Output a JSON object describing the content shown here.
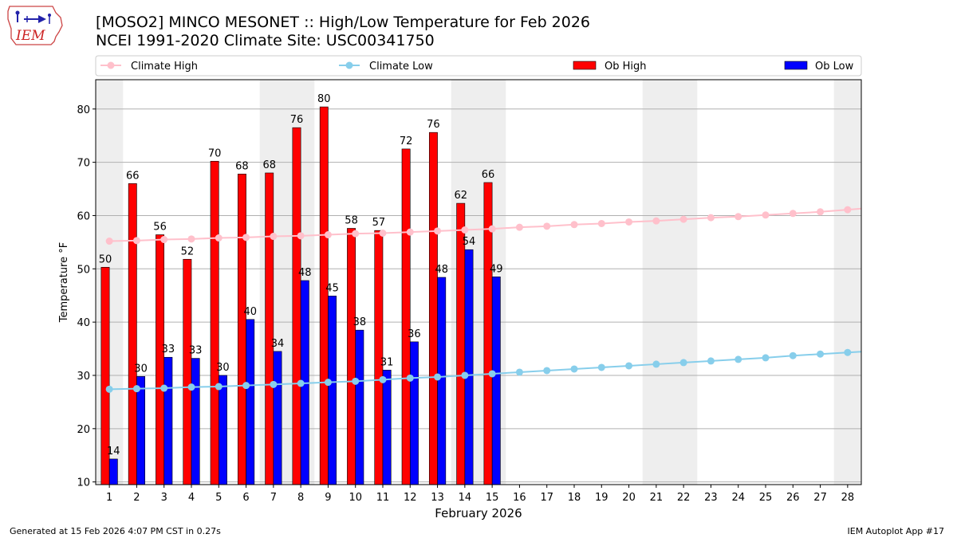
{
  "header": {
    "title_line1": "[MOSO2] MINCO MESONET :: High/Low Temperature for Feb 2026",
    "title_line2": "NCEI 1991-2020 Climate Site: USC00341750",
    "logo_text": "IEM"
  },
  "footer": {
    "left": "Generated at 15 Feb 2026 4:07 PM CST in 0.27s",
    "right": "IEM Autoplot App #17"
  },
  "colors": {
    "ob_high": "#ff0000",
    "ob_low": "#0000ff",
    "climate_high": "#ffc0cb",
    "climate_low": "#87ceeb",
    "weekend_shade": "#eeeeee"
  },
  "chart_data": {
    "type": "bar",
    "xlabel": "February 2026",
    "ylabel": "Temperature °F",
    "ylim": [
      9.5,
      85.5
    ],
    "yticks": [
      10,
      20,
      30,
      40,
      50,
      60,
      70,
      80
    ],
    "grid": true,
    "legend_position": "top",
    "days": [
      1,
      2,
      3,
      4,
      5,
      6,
      7,
      8,
      9,
      10,
      11,
      12,
      13,
      14,
      15,
      16,
      17,
      18,
      19,
      20,
      21,
      22,
      23,
      24,
      25,
      26,
      27,
      28
    ],
    "weekend_days": [
      1,
      7,
      8,
      14,
      15,
      21,
      22,
      28
    ],
    "series": [
      {
        "name": "Climate High",
        "kind": "line",
        "values": [
          55.2,
          55.3,
          55.5,
          55.6,
          55.8,
          55.9,
          56.1,
          56.2,
          56.4,
          56.6,
          56.7,
          56.9,
          57.1,
          57.3,
          57.5,
          57.8,
          58.0,
          58.3,
          58.5,
          58.8,
          59.0,
          59.3,
          59.6,
          59.8,
          60.1,
          60.4,
          60.7,
          61.1
        ]
      },
      {
        "name": "Climate Low",
        "kind": "line",
        "values": [
          27.4,
          27.5,
          27.6,
          27.8,
          27.9,
          28.1,
          28.3,
          28.5,
          28.7,
          28.9,
          29.2,
          29.5,
          29.7,
          30.0,
          30.3,
          30.6,
          30.9,
          31.2,
          31.5,
          31.8,
          32.1,
          32.4,
          32.7,
          33.0,
          33.3,
          33.7,
          34.0,
          34.3
        ]
      },
      {
        "name": "Ob High",
        "kind": "bar",
        "values": [
          50.3,
          66.0,
          56.4,
          51.8,
          70.2,
          67.8,
          68.0,
          76.5,
          80.4,
          57.6,
          57.2,
          72.5,
          75.6,
          62.3,
          66.2
        ],
        "labels": [
          "50",
          "66",
          "56",
          "52",
          "70",
          "68",
          "68",
          "76",
          "80",
          "58",
          "57",
          "72",
          "76",
          "62",
          "66"
        ]
      },
      {
        "name": "Ob Low",
        "kind": "bar",
        "values": [
          14.3,
          29.8,
          33.4,
          33.2,
          30.0,
          40.5,
          34.5,
          47.8,
          44.9,
          38.5,
          31.0,
          36.3,
          48.4,
          53.6,
          48.5
        ],
        "labels": [
          "14",
          "30",
          "33",
          "33",
          "30",
          "40",
          "34",
          "48",
          "45",
          "38",
          "31",
          "36",
          "48",
          "54",
          "49"
        ]
      }
    ]
  }
}
